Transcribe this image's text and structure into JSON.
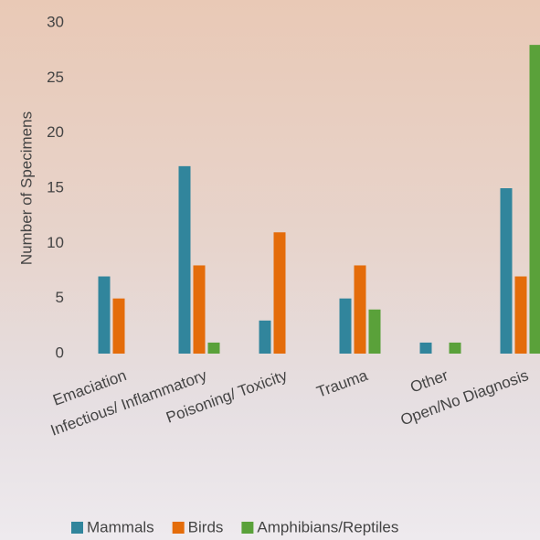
{
  "chart_data": {
    "type": "bar",
    "y_label": "Number of Specimens",
    "categories": [
      "Emaciation",
      "Infectious/ Inflammatory",
      "Poisoning/ Toxicity",
      "Trauma",
      "Other",
      "Open/No Diagnosis"
    ],
    "series": [
      {
        "name": "Mammals",
        "color": "#31859c",
        "values": [
          7,
          17,
          3,
          5,
          1,
          15
        ]
      },
      {
        "name": "Birds",
        "color": "#e46c0a",
        "values": [
          5,
          8,
          11,
          8,
          0,
          7
        ]
      },
      {
        "name": "Amphibians/Reptiles",
        "color": "#5aa13a",
        "values": [
          0,
          1,
          0,
          4,
          1,
          28
        ]
      }
    ],
    "ylim": [
      0,
      30
    ],
    "yticks": [
      0,
      5,
      10,
      15,
      20,
      25,
      30
    ],
    "legend": "bottom"
  }
}
